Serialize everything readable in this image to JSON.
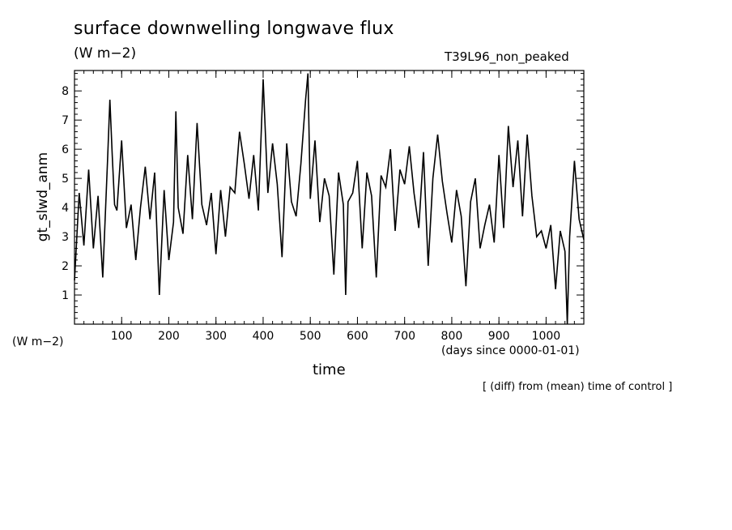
{
  "chart_data": {
    "type": "line",
    "title": "surface downwelling longwave flux",
    "units": "(W m−2)",
    "experiment": "T39L96_non_peaked",
    "ylabel": "gt_slwd_anm",
    "y_units": "(W m−2)",
    "xlabel": "time",
    "x_units": "(days since 0000-01-01)",
    "note": "[ (diff) from (mean) time of control ]",
    "xlim": [
      0,
      1080
    ],
    "ylim": [
      0,
      8.7
    ],
    "x_ticks": [
      100,
      200,
      300,
      400,
      500,
      600,
      700,
      800,
      900,
      1000
    ],
    "y_ticks": [
      1,
      2,
      3,
      4,
      5,
      6,
      7,
      8
    ],
    "grid": false,
    "legend": "none",
    "line_color": "#000000",
    "series": [
      {
        "x": [
          0,
          10,
          20,
          30,
          40,
          50,
          60,
          70,
          75,
          80,
          85,
          90,
          100,
          110,
          120,
          130,
          140,
          150,
          160,
          170,
          180,
          190,
          200,
          210,
          215,
          220,
          230,
          240,
          250,
          260,
          270,
          280,
          290,
          300,
          310,
          320,
          330,
          340,
          350,
          360,
          370,
          380,
          390,
          400,
          410,
          420,
          430,
          440,
          450,
          460,
          470,
          480,
          490,
          495,
          500,
          510,
          520,
          530,
          540,
          550,
          560,
          570,
          575,
          580,
          590,
          600,
          610,
          620,
          630,
          640,
          650,
          660,
          670,
          680,
          690,
          700,
          710,
          720,
          730,
          740,
          750,
          760,
          770,
          780,
          790,
          800,
          810,
          820,
          830,
          840,
          850,
          860,
          870,
          880,
          890,
          900,
          910,
          920,
          930,
          940,
          950,
          960,
          970,
          980,
          990,
          1000,
          1010,
          1020,
          1030,
          1040,
          1045,
          1050,
          1060,
          1070,
          1080
        ],
        "y": [
          1.5,
          4.5,
          2.7,
          5.3,
          2.6,
          4.4,
          1.6,
          5.6,
          7.7,
          5.8,
          4.1,
          3.9,
          6.3,
          3.3,
          4.1,
          2.2,
          4.0,
          5.4,
          3.6,
          5.2,
          1.0,
          4.6,
          2.2,
          3.5,
          7.3,
          4.0,
          3.1,
          5.8,
          3.6,
          6.9,
          4.1,
          3.4,
          4.5,
          2.4,
          4.6,
          3.0,
          4.7,
          4.5,
          6.6,
          5.5,
          4.3,
          5.8,
          3.9,
          8.4,
          4.5,
          6.2,
          4.8,
          2.3,
          6.2,
          4.2,
          3.7,
          5.5,
          7.7,
          8.6,
          4.3,
          6.3,
          3.5,
          5.0,
          4.4,
          1.7,
          5.2,
          4.1,
          1.0,
          4.2,
          4.5,
          5.6,
          2.6,
          5.2,
          4.4,
          1.6,
          5.1,
          4.7,
          6.0,
          3.2,
          5.3,
          4.8,
          6.1,
          4.5,
          3.3,
          5.9,
          2.0,
          5.0,
          6.5,
          4.9,
          3.8,
          2.8,
          4.6,
          3.7,
          1.3,
          4.2,
          5.0,
          2.6,
          3.4,
          4.1,
          2.8,
          5.8,
          3.3,
          6.8,
          4.7,
          6.3,
          3.7,
          6.5,
          4.4,
          3.0,
          3.2,
          2.6,
          3.4,
          1.2,
          3.2,
          2.5,
          0.0,
          3.0,
          5.6,
          3.6,
          2.9
        ]
      }
    ]
  }
}
